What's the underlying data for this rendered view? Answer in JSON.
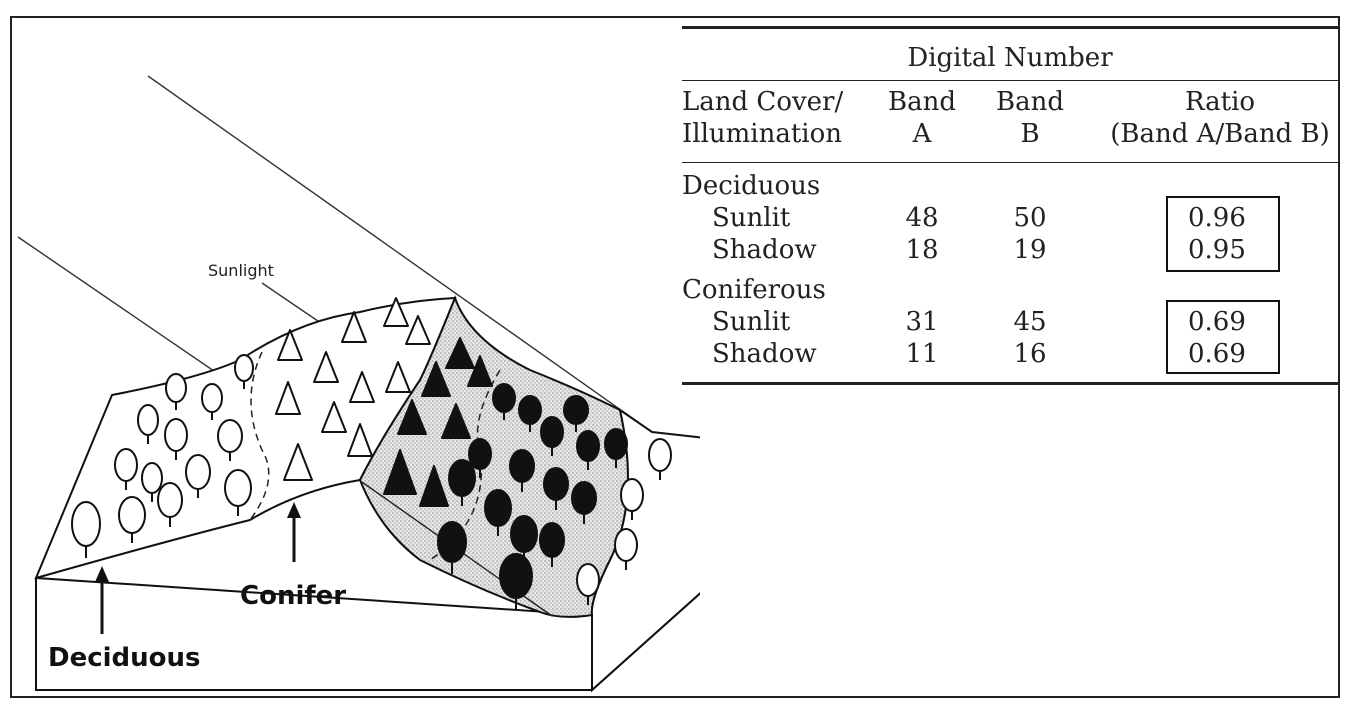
{
  "diagram": {
    "sunlight_label": "Sunlight",
    "deciduous_label": "Deciduous",
    "conifer_label": "Conifer"
  },
  "table": {
    "title": "Digital Number",
    "headers": {
      "landcover_line1": "Land Cover/",
      "landcover_line2": "Illumination",
      "banda_line1": "Band",
      "banda_line2": "A",
      "bandb_line1": "Band",
      "bandb_line2": "B",
      "ratio_line1": "Ratio",
      "ratio_line2": "(Band A/Band B)"
    },
    "groups": [
      {
        "name": "Deciduous",
        "rows": [
          {
            "label": "Sunlit",
            "band_a": "48",
            "band_b": "50",
            "ratio": "0.96"
          },
          {
            "label": "Shadow",
            "band_a": "18",
            "band_b": "19",
            "ratio": "0.95"
          }
        ]
      },
      {
        "name": "Coniferous",
        "rows": [
          {
            "label": "Sunlit",
            "band_a": "31",
            "band_b": "45",
            "ratio": "0.69"
          },
          {
            "label": "Shadow",
            "band_a": "11",
            "band_b": "16",
            "ratio": "0.69"
          }
        ]
      }
    ]
  }
}
